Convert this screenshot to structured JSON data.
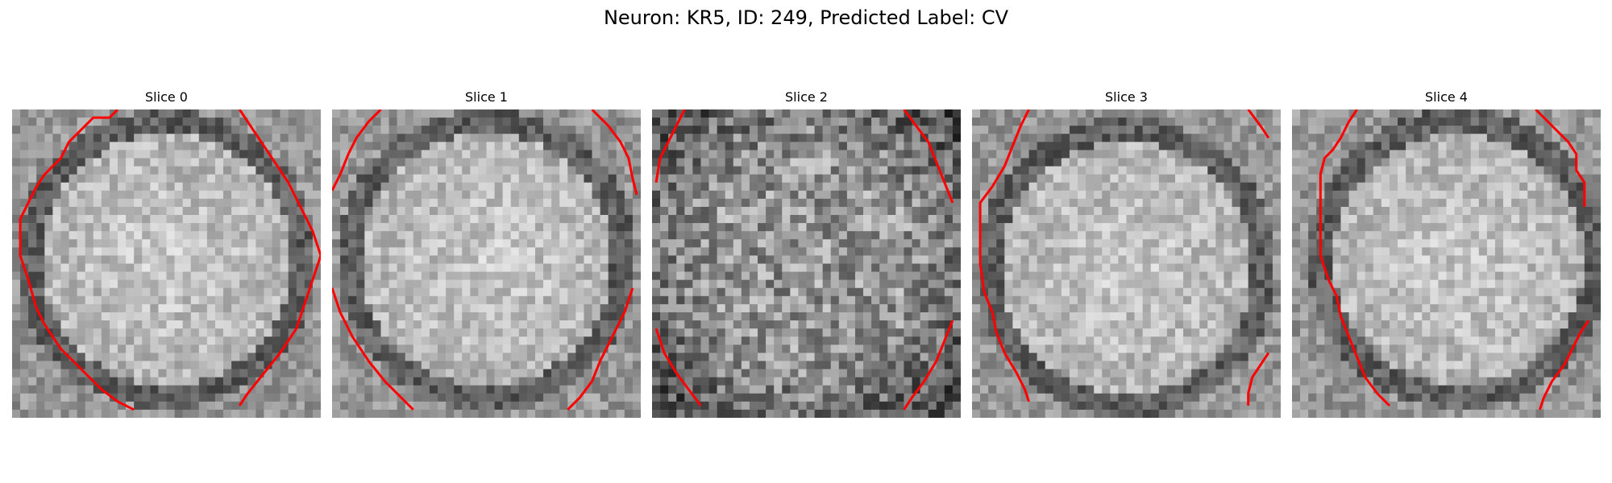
{
  "figure": {
    "title": "Neuron: KR5, ID: 249, Predicted Label: CV"
  },
  "colors": {
    "contour": "#ff0000",
    "background": "#ffffff"
  },
  "panels": [
    {
      "title": "Slice 0",
      "brightness": "bright",
      "contours": [
        [
          [
            13.0,
            0.0
          ],
          [
            12.0,
            1.0
          ],
          [
            10.0,
            1.0
          ],
          [
            9.0,
            2.0
          ],
          [
            7.0,
            4.0
          ],
          [
            6.0,
            6.0
          ],
          [
            4.0,
            8.0
          ],
          [
            3.0,
            9.5
          ],
          [
            2.0,
            11.5
          ],
          [
            1.0,
            13.5
          ],
          [
            1.0,
            18.0
          ],
          [
            2.0,
            21.0
          ],
          [
            3.0,
            24.5
          ],
          [
            4.0,
            26.5
          ],
          [
            6.0,
            29.5
          ],
          [
            9.0,
            32.5
          ],
          [
            11.0,
            34.5
          ],
          [
            13.0,
            36.0
          ],
          [
            15.0,
            37.0
          ]
        ],
        [
          [
            28.0,
            0.0
          ],
          [
            29.0,
            1.5
          ],
          [
            30.0,
            3.0
          ],
          [
            31.0,
            4.5
          ],
          [
            32.0,
            6.0
          ],
          [
            33.0,
            7.5
          ],
          [
            34.0,
            9.0
          ],
          [
            35.0,
            11.0
          ],
          [
            36.0,
            13.0
          ],
          [
            37.0,
            15.0
          ],
          [
            38.0,
            18.0
          ],
          [
            37.0,
            21.0
          ],
          [
            36.0,
            24.0
          ],
          [
            35.0,
            27.0
          ],
          [
            33.0,
            30.0
          ],
          [
            31.0,
            32.5
          ],
          [
            29.0,
            35.0
          ],
          [
            28.0,
            36.5
          ]
        ]
      ]
    },
    {
      "title": "Slice 1",
      "brightness": "bright",
      "contours": [
        [
          [
            6.0,
            0.0
          ],
          [
            4.5,
            1.5
          ],
          [
            3.0,
            3.5
          ],
          [
            2.0,
            5.5
          ],
          [
            1.0,
            8.0
          ],
          [
            0.0,
            10.0
          ]
        ],
        [
          [
            0.0,
            22.0
          ],
          [
            1.0,
            25.0
          ],
          [
            2.5,
            28.0
          ],
          [
            4.5,
            31.0
          ],
          [
            6.5,
            33.5
          ],
          [
            8.5,
            35.5
          ],
          [
            10.0,
            37.0
          ]
        ],
        [
          [
            32.0,
            0.0
          ],
          [
            34.0,
            2.0
          ],
          [
            35.5,
            4.0
          ],
          [
            36.5,
            6.0
          ],
          [
            37.0,
            8.5
          ],
          [
            37.5,
            10.5
          ]
        ],
        [
          [
            37.0,
            22.0
          ],
          [
            36.0,
            25.0
          ],
          [
            34.5,
            28.0
          ],
          [
            33.0,
            31.0
          ],
          [
            32.0,
            33.5
          ],
          [
            30.5,
            35.5
          ],
          [
            29.0,
            37.0
          ]
        ]
      ]
    },
    {
      "title": "Slice 2",
      "brightness": "mid",
      "contours": [
        [
          [
            4.0,
            0.0
          ],
          [
            3.0,
            2.0
          ],
          [
            2.0,
            4.0
          ],
          [
            1.0,
            6.0
          ],
          [
            0.5,
            9.0
          ]
        ],
        [
          [
            0.5,
            27.0
          ],
          [
            1.5,
            30.0
          ],
          [
            3.0,
            32.5
          ],
          [
            4.5,
            34.5
          ],
          [
            6.0,
            36.5
          ]
        ],
        [
          [
            31.0,
            0.0
          ],
          [
            32.5,
            2.0
          ],
          [
            34.0,
            4.0
          ],
          [
            35.0,
            6.5
          ],
          [
            36.0,
            9.0
          ],
          [
            37.0,
            11.5
          ]
        ],
        [
          [
            37.0,
            26.0
          ],
          [
            36.0,
            28.5
          ],
          [
            35.0,
            31.0
          ],
          [
            33.5,
            33.5
          ],
          [
            32.0,
            35.5
          ],
          [
            31.0,
            37.0
          ]
        ]
      ]
    },
    {
      "title": "Slice 3",
      "brightness": "bright",
      "contours": [
        [
          [
            7.0,
            0.0
          ],
          [
            6.0,
            2.0
          ],
          [
            5.0,
            4.5
          ],
          [
            4.0,
            7.0
          ],
          [
            2.5,
            9.5
          ],
          [
            1.0,
            11.5
          ],
          [
            1.0,
            15.0
          ],
          [
            1.0,
            19.0
          ],
          [
            1.5,
            22.5
          ],
          [
            2.5,
            25.0
          ],
          [
            3.0,
            27.5
          ],
          [
            4.0,
            30.0
          ],
          [
            5.5,
            32.5
          ],
          [
            6.5,
            34.5
          ],
          [
            7.0,
            36.0
          ]
        ],
        [
          [
            34.0,
            0.0
          ],
          [
            35.5,
            2.0
          ],
          [
            36.5,
            3.5
          ]
        ],
        [
          [
            36.5,
            30.0
          ],
          [
            35.5,
            31.5
          ],
          [
            34.5,
            33.0
          ],
          [
            34.0,
            35.0
          ],
          [
            34.0,
            36.5
          ]
        ]
      ]
    },
    {
      "title": "Slice 4",
      "brightness": "bright",
      "contours": [
        [
          [
            8.0,
            0.0
          ],
          [
            7.0,
            1.5
          ],
          [
            6.0,
            3.5
          ],
          [
            5.0,
            5.0
          ],
          [
            4.0,
            6.0
          ],
          [
            3.5,
            8.0
          ],
          [
            3.5,
            11.0
          ],
          [
            3.5,
            14.5
          ],
          [
            3.5,
            18.0
          ],
          [
            4.5,
            21.0
          ],
          [
            5.5,
            23.0
          ],
          [
            6.0,
            25.5
          ],
          [
            7.0,
            28.0
          ],
          [
            8.0,
            30.5
          ],
          [
            9.0,
            33.0
          ],
          [
            10.5,
            35.0
          ],
          [
            12.0,
            36.5
          ]
        ],
        [
          [
            30.0,
            0.0
          ],
          [
            32.0,
            2.0
          ],
          [
            34.0,
            4.0
          ],
          [
            35.0,
            5.5
          ],
          [
            35.0,
            7.5
          ],
          [
            36.0,
            9.0
          ],
          [
            36.0,
            12.0
          ]
        ],
        [
          [
            36.5,
            26.0
          ],
          [
            35.5,
            27.5
          ],
          [
            34.5,
            29.5
          ],
          [
            33.5,
            31.5
          ],
          [
            32.0,
            33.5
          ],
          [
            31.0,
            35.5
          ],
          [
            30.5,
            37.0
          ]
        ]
      ]
    }
  ]
}
